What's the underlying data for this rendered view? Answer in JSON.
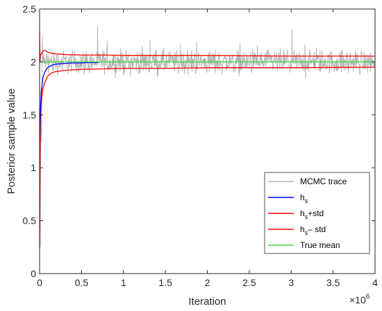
{
  "chart_data": {
    "type": "line",
    "title": "",
    "xlabel": "Iteration",
    "ylabel": "Posterior sample value",
    "x_exponent_label": "×10",
    "x_exponent_power": "6",
    "xlim": [
      0,
      4000000
    ],
    "ylim": [
      0,
      2.5
    ],
    "x_ticks": [
      0,
      500000,
      1000000,
      1500000,
      2000000,
      2500000,
      3000000,
      3500000,
      4000000
    ],
    "x_tick_labels": [
      "0",
      "0.5",
      "1",
      "1.5",
      "2",
      "2.5",
      "3",
      "3.5",
      "4"
    ],
    "y_ticks": [
      0,
      0.5,
      1,
      1.5,
      2,
      2.5
    ],
    "y_tick_labels": [
      "0",
      "0.5",
      "1",
      "1.5",
      "2",
      "2.5"
    ],
    "grid": false,
    "legend_position": "bottom-right",
    "legend": [
      {
        "key": "mcmc",
        "base": "MCMC trace",
        "sub": "",
        "suffix": ""
      },
      {
        "key": "hs",
        "base": "h",
        "sub": "s",
        "suffix": ""
      },
      {
        "key": "hs_plus",
        "base": "h",
        "sub": "s",
        "suffix": "+std"
      },
      {
        "key": "hs_minus",
        "base": "h",
        "sub": "s",
        "suffix": "– std"
      },
      {
        "key": "true_mean",
        "base": "True mean",
        "sub": "",
        "suffix": ""
      }
    ],
    "series": [
      {
        "key": "mcmc",
        "color": "#b3b3b3",
        "style": "noisy-trace",
        "description_values": {
          "mean": 2.0,
          "spread": 0.07,
          "initial": [
            2.3,
            0.25,
            1.6,
            1.25,
            2.25
          ]
        },
        "x_end": 4000000
      },
      {
        "key": "hs",
        "color": "#0000ff",
        "x": [
          0,
          10000,
          20000,
          40000,
          60000,
          80000,
          100000,
          150000,
          200000,
          300000,
          400000,
          500000,
          600000,
          700000
        ],
        "values": [
          1.25,
          1.55,
          1.72,
          1.85,
          1.9,
          1.93,
          1.95,
          1.97,
          1.98,
          1.985,
          1.99,
          1.99,
          1.995,
          1.995
        ]
      },
      {
        "key": "hs_plus",
        "color": "#ff0000",
        "x": [
          0,
          5000,
          10000,
          20000,
          40000,
          60000,
          80000,
          100000,
          150000,
          200000,
          300000,
          500000,
          800000,
          1000000,
          1500000,
          2000000,
          3000000,
          4000000
        ],
        "values": [
          2.3,
          2.0,
          2.06,
          2.08,
          2.1,
          2.11,
          2.1,
          2.09,
          2.08,
          2.075,
          2.07,
          2.065,
          2.065,
          2.06,
          2.06,
          2.06,
          2.055,
          2.055
        ]
      },
      {
        "key": "hs_minus",
        "color": "#ff0000",
        "x": [
          0,
          5000,
          10000,
          20000,
          40000,
          60000,
          80000,
          100000,
          150000,
          200000,
          300000,
          500000,
          800000,
          1000000,
          1500000,
          2000000,
          3000000,
          4000000
        ],
        "values": [
          0.25,
          1.0,
          1.45,
          1.62,
          1.75,
          1.8,
          1.84,
          1.87,
          1.9,
          1.91,
          1.92,
          1.93,
          1.935,
          1.94,
          1.94,
          1.945,
          1.945,
          1.95
        ]
      },
      {
        "key": "true_mean",
        "color": "#33dd33",
        "x": [
          0,
          4000000
        ],
        "values": [
          2.0,
          2.0
        ]
      }
    ]
  }
}
